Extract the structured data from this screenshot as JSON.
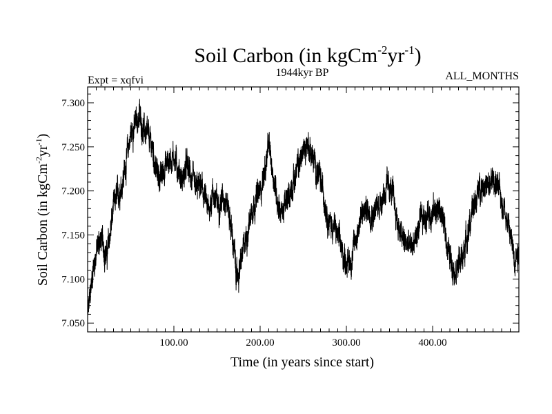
{
  "title": {
    "main": "Soil Carbon (in kgCm",
    "sup1": "-2",
    "mid": "yr",
    "sup2": "-1",
    "end": ")"
  },
  "subtitle_left": "Expt = xqfvi",
  "subtitle_center": "1944kyr BP",
  "subtitle_right": "ALL_MONTHS",
  "chart_data": {
    "type": "line",
    "xlabel": "Time (in years since start)",
    "ylabel": {
      "main": "Soil Carbon (in kgCm",
      "sup1": "-2",
      "mid": "yr",
      "sup2": "-1",
      "end": ")"
    },
    "xlim": [
      0,
      500
    ],
    "ylim": [
      7.04,
      7.318
    ],
    "x_ticks": [
      100,
      200,
      300,
      400
    ],
    "x_tick_labels": [
      "100.00",
      "200.00",
      "300.00",
      "400.00"
    ],
    "y_ticks": [
      7.05,
      7.1,
      7.15,
      7.2,
      7.25,
      7.3
    ],
    "y_tick_labels": [
      "7.050",
      "7.100",
      "7.150",
      "7.200",
      "7.250",
      "7.300"
    ],
    "line_color": "#000000",
    "grid": false,
    "series": [
      {
        "x": [
          0,
          3,
          6,
          10,
          14,
          18,
          22,
          26,
          30,
          35,
          40,
          45,
          50,
          55,
          60,
          65,
          70,
          75,
          80,
          85,
          90,
          95,
          100,
          105,
          110,
          115,
          120,
          125,
          130,
          135,
          140,
          145,
          150,
          155,
          160,
          165,
          170,
          173,
          176,
          180,
          185,
          190,
          195,
          200,
          205,
          210,
          215,
          220,
          225,
          230,
          235,
          240,
          245,
          250,
          255,
          260,
          265,
          270,
          275,
          280,
          285,
          290,
          295,
          300,
          305,
          310,
          315,
          320,
          325,
          330,
          335,
          340,
          345,
          350,
          355,
          360,
          365,
          370,
          375,
          380,
          385,
          390,
          395,
          400,
          405,
          410,
          415,
          420,
          425,
          430,
          435,
          440,
          445,
          450,
          455,
          460,
          465,
          470,
          475,
          480,
          485,
          490,
          495,
          500
        ],
        "values": [
          7.055,
          7.08,
          7.11,
          7.13,
          7.145,
          7.14,
          7.125,
          7.15,
          7.18,
          7.195,
          7.21,
          7.235,
          7.265,
          7.275,
          7.285,
          7.27,
          7.26,
          7.25,
          7.22,
          7.215,
          7.23,
          7.235,
          7.24,
          7.225,
          7.21,
          7.23,
          7.215,
          7.2,
          7.205,
          7.195,
          7.175,
          7.2,
          7.185,
          7.19,
          7.195,
          7.17,
          7.13,
          7.1,
          7.11,
          7.13,
          7.15,
          7.18,
          7.19,
          7.2,
          7.22,
          7.25,
          7.22,
          7.19,
          7.175,
          7.185,
          7.2,
          7.215,
          7.23,
          7.245,
          7.255,
          7.24,
          7.225,
          7.21,
          7.19,
          7.165,
          7.16,
          7.15,
          7.13,
          7.12,
          7.12,
          7.14,
          7.165,
          7.175,
          7.18,
          7.175,
          7.18,
          7.19,
          7.2,
          7.205,
          7.19,
          7.16,
          7.145,
          7.14,
          7.135,
          7.145,
          7.16,
          7.17,
          7.175,
          7.175,
          7.18,
          7.175,
          7.15,
          7.125,
          7.115,
          7.115,
          7.125,
          7.15,
          7.17,
          7.19,
          7.205,
          7.21,
          7.2,
          7.215,
          7.205,
          7.19,
          7.175,
          7.15,
          7.125,
          7.135
        ]
      }
    ]
  }
}
